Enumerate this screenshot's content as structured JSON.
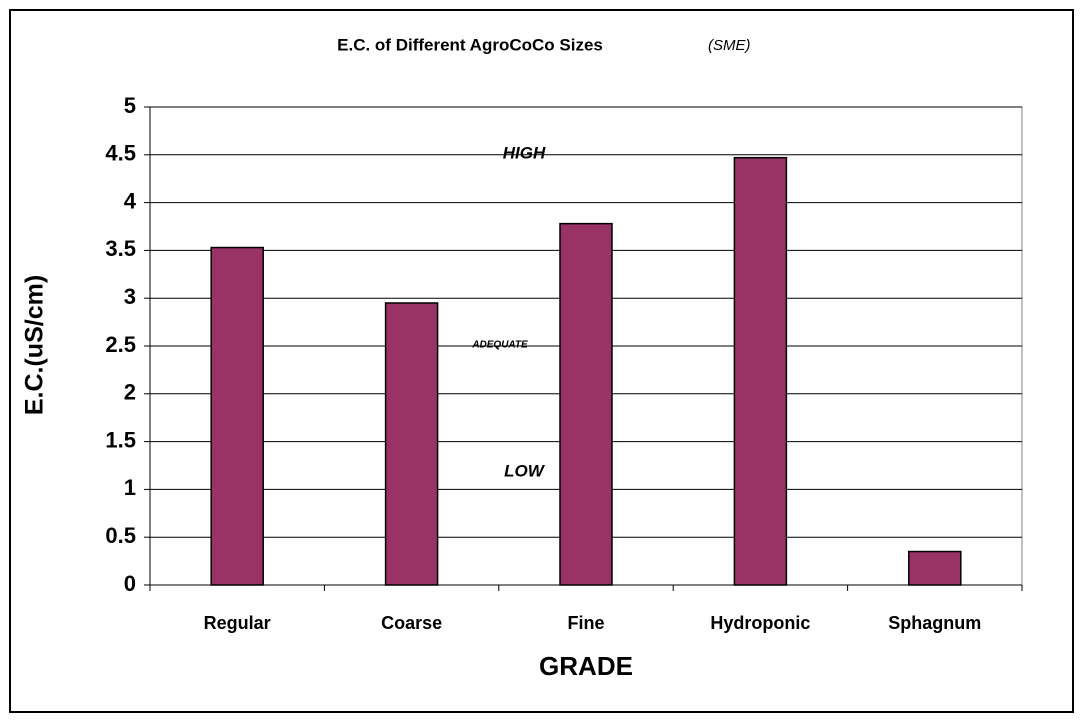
{
  "chart_data": {
    "type": "bar",
    "title": "E.C. of Different  AgroCoCo Sizes",
    "subtitle": "(SME)",
    "x_label": "GRADE",
    "y_label": "E.C.(uS/cm)",
    "categories": [
      "Regular",
      "Coarse",
      "Fine",
      "Hydroponic",
      "Sphagnum"
    ],
    "values": [
      3.53,
      2.95,
      3.78,
      4.47,
      0.35
    ],
    "color": "#993366",
    "ylim": [
      0,
      5
    ],
    "yticks": [
      0,
      0.5,
      1,
      1.5,
      2,
      2.5,
      3,
      3.5,
      4,
      4.5,
      5
    ],
    "grid": true,
    "annotations": [
      "HIGH",
      "ADEQUATE",
      "LOW"
    ]
  }
}
